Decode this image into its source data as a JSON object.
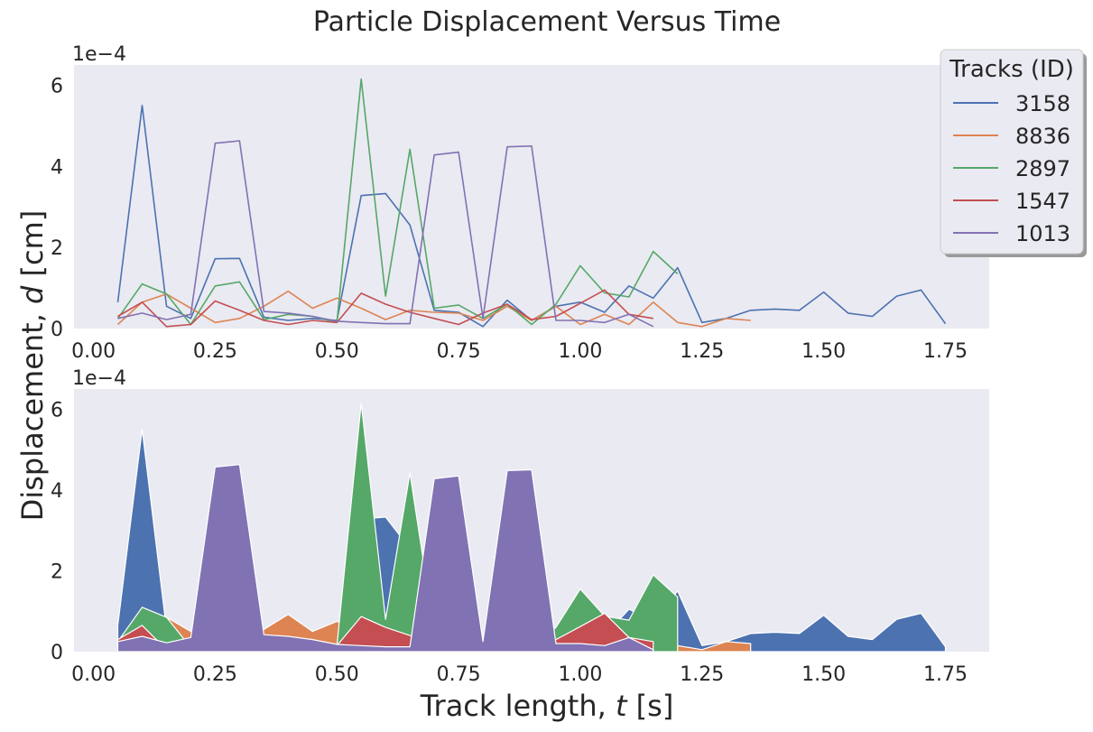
{
  "chart_data": {
    "title": "Particle Displacement Versus Time",
    "xlabel": "Track length, t [s]",
    "xlabel_parts": [
      "Track length, ",
      "t",
      " [s]"
    ],
    "ylabel": "Displacement, d [cm]",
    "ylabel_parts": [
      "Displacement, ",
      "d",
      " [cm]"
    ],
    "y_offset_label": "1e−4",
    "legend_title": "Tracks (ID)",
    "legend_position": "upper right (outside)",
    "x_tick_labels": [
      "0.00",
      "0.25",
      "0.50",
      "0.75",
      "1.00",
      "1.25",
      "1.50",
      "1.75"
    ],
    "y_tick_labels": [
      "0",
      "2",
      "4",
      "6"
    ],
    "x_ticks": [
      0,
      0.25,
      0.5,
      0.75,
      1.0,
      1.25,
      1.5,
      1.75
    ],
    "y_ticks": [
      0,
      2,
      4,
      6
    ],
    "xlim": [
      -0.04,
      1.84
    ],
    "ylim": [
      0,
      6.5
    ],
    "y_scale": "1e-4",
    "grid": false,
    "colors": [
      "#4c72b0",
      "#dd8452",
      "#55a868",
      "#c44e52",
      "#8172b3"
    ],
    "panels": [
      {
        "type": "line",
        "stacked": false
      },
      {
        "type": "area",
        "stacked": false,
        "edgecolor": "#ffffff"
      }
    ],
    "series": [
      {
        "name": "3158",
        "x": [
          0.05,
          0.1,
          0.15,
          0.2,
          0.25,
          0.3,
          0.35,
          0.4,
          0.45,
          0.5,
          0.55,
          0.6,
          0.65,
          0.7,
          0.75,
          0.8,
          0.85,
          0.9,
          0.95,
          1.0,
          1.05,
          1.1,
          1.15,
          1.2,
          1.25,
          1.3,
          1.35,
          1.4,
          1.45,
          1.5,
          1.55,
          1.6,
          1.65,
          1.7,
          1.75
        ],
        "values": [
          0.65,
          5.5,
          0.55,
          0.25,
          1.72,
          1.73,
          0.28,
          0.2,
          0.25,
          0.2,
          3.28,
          3.33,
          2.55,
          0.45,
          0.4,
          0.05,
          0.7,
          0.2,
          0.55,
          0.65,
          0.4,
          1.05,
          0.75,
          1.5,
          0.15,
          0.25,
          0.45,
          0.48,
          0.45,
          0.9,
          0.38,
          0.3,
          0.8,
          0.95,
          0.12
        ]
      },
      {
        "name": "8836",
        "x": [
          0.05,
          0.1,
          0.15,
          0.2,
          0.25,
          0.3,
          0.35,
          0.4,
          0.45,
          0.5,
          0.55,
          0.6,
          0.65,
          0.7,
          0.75,
          0.8,
          0.85,
          0.9,
          0.95,
          1.0,
          1.05,
          1.1,
          1.15,
          1.2,
          1.25,
          1.3,
          1.35
        ],
        "values": [
          0.1,
          0.65,
          0.85,
          0.5,
          0.15,
          0.25,
          0.55,
          0.92,
          0.5,
          0.75,
          0.5,
          0.22,
          0.45,
          0.4,
          0.38,
          0.2,
          0.55,
          0.2,
          0.55,
          0.1,
          0.35,
          0.1,
          0.65,
          0.15,
          0.05,
          0.25,
          0.2
        ]
      },
      {
        "name": "2897",
        "x": [
          0.05,
          0.1,
          0.15,
          0.2,
          0.25,
          0.3,
          0.35,
          0.4,
          0.45,
          0.5,
          0.55,
          0.6,
          0.65,
          0.7,
          0.75,
          0.8,
          0.85,
          0.9,
          0.95,
          1.0,
          1.05,
          1.1,
          1.15,
          1.2
        ],
        "values": [
          0.25,
          1.1,
          0.85,
          0.1,
          1.05,
          1.15,
          0.22,
          0.35,
          0.3,
          0.15,
          6.15,
          0.8,
          4.42,
          0.5,
          0.58,
          0.25,
          0.6,
          0.1,
          0.6,
          1.55,
          0.88,
          0.78,
          1.9,
          1.35
        ]
      },
      {
        "name": "1547",
        "x": [
          0.05,
          0.1,
          0.15,
          0.2,
          0.25,
          0.3,
          0.35,
          0.4,
          0.45,
          0.5,
          0.55,
          0.6,
          0.65,
          0.7,
          0.75,
          0.8,
          0.85,
          0.9,
          0.95,
          1.0,
          1.05,
          1.1,
          1.15
        ],
        "values": [
          0.3,
          0.65,
          0.05,
          0.1,
          0.68,
          0.45,
          0.2,
          0.1,
          0.2,
          0.15,
          0.87,
          0.6,
          0.4,
          0.25,
          0.1,
          0.38,
          0.6,
          0.22,
          0.3,
          0.62,
          0.95,
          0.35,
          0.25
        ]
      },
      {
        "name": "1013",
        "x": [
          0.05,
          0.1,
          0.15,
          0.2,
          0.25,
          0.3,
          0.35,
          0.4,
          0.45,
          0.5,
          0.55,
          0.6,
          0.65,
          0.7,
          0.75,
          0.8,
          0.85,
          0.9,
          0.95,
          1.0,
          1.05,
          1.1,
          1.15
        ],
        "values": [
          0.25,
          0.38,
          0.22,
          0.35,
          4.57,
          4.63,
          0.42,
          0.38,
          0.3,
          0.18,
          0.15,
          0.12,
          0.12,
          4.28,
          4.35,
          0.25,
          4.48,
          4.5,
          0.2,
          0.2,
          0.15,
          0.35,
          0.05
        ]
      }
    ]
  }
}
